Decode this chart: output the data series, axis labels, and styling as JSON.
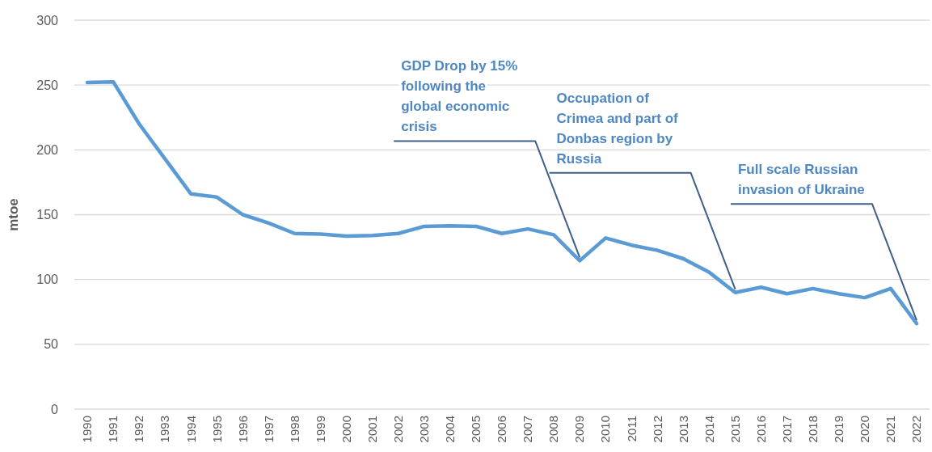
{
  "chart_data": {
    "type": "line",
    "ylabel": "mtoe",
    "categories": [
      "1990",
      "1991",
      "1992",
      "1993",
      "1994",
      "1995",
      "1996",
      "1997",
      "1998",
      "1999",
      "2000",
      "2001",
      "2002",
      "2003",
      "2004",
      "2005",
      "2006",
      "2007",
      "2008",
      "2009",
      "2010",
      "2011",
      "2012",
      "2013",
      "2014",
      "2015",
      "2016",
      "2017",
      "2018",
      "2019",
      "2020",
      "2021",
      "2022"
    ],
    "series": [
      {
        "color": "#5b9bd5",
        "values": [
          252,
          252.5,
          220,
          193,
          166,
          163.5,
          150,
          143.5,
          135.5,
          135,
          133.5,
          134,
          135.5,
          141,
          141.5,
          141,
          135.5,
          139,
          134.5,
          114.5,
          132,
          126.5,
          122.5,
          116,
          105.5,
          90,
          94,
          89,
          93,
          89,
          86,
          93,
          66
        ]
      }
    ],
    "ylim": [
      0,
      300
    ],
    "yticks": [
      0,
      50,
      100,
      150,
      200,
      250,
      300
    ],
    "grid": "y",
    "annotations": [
      {
        "text": "GDP Drop by 15% following the global economic crisis",
        "x": "2009",
        "y": 114.5
      },
      {
        "text": "Occupation of Crimea and part of Donbas region by Russia",
        "x": "2015",
        "y": 90
      },
      {
        "text": "Full scale Russian invasion of Ukraine",
        "x": "2022",
        "y": 66
      }
    ]
  }
}
